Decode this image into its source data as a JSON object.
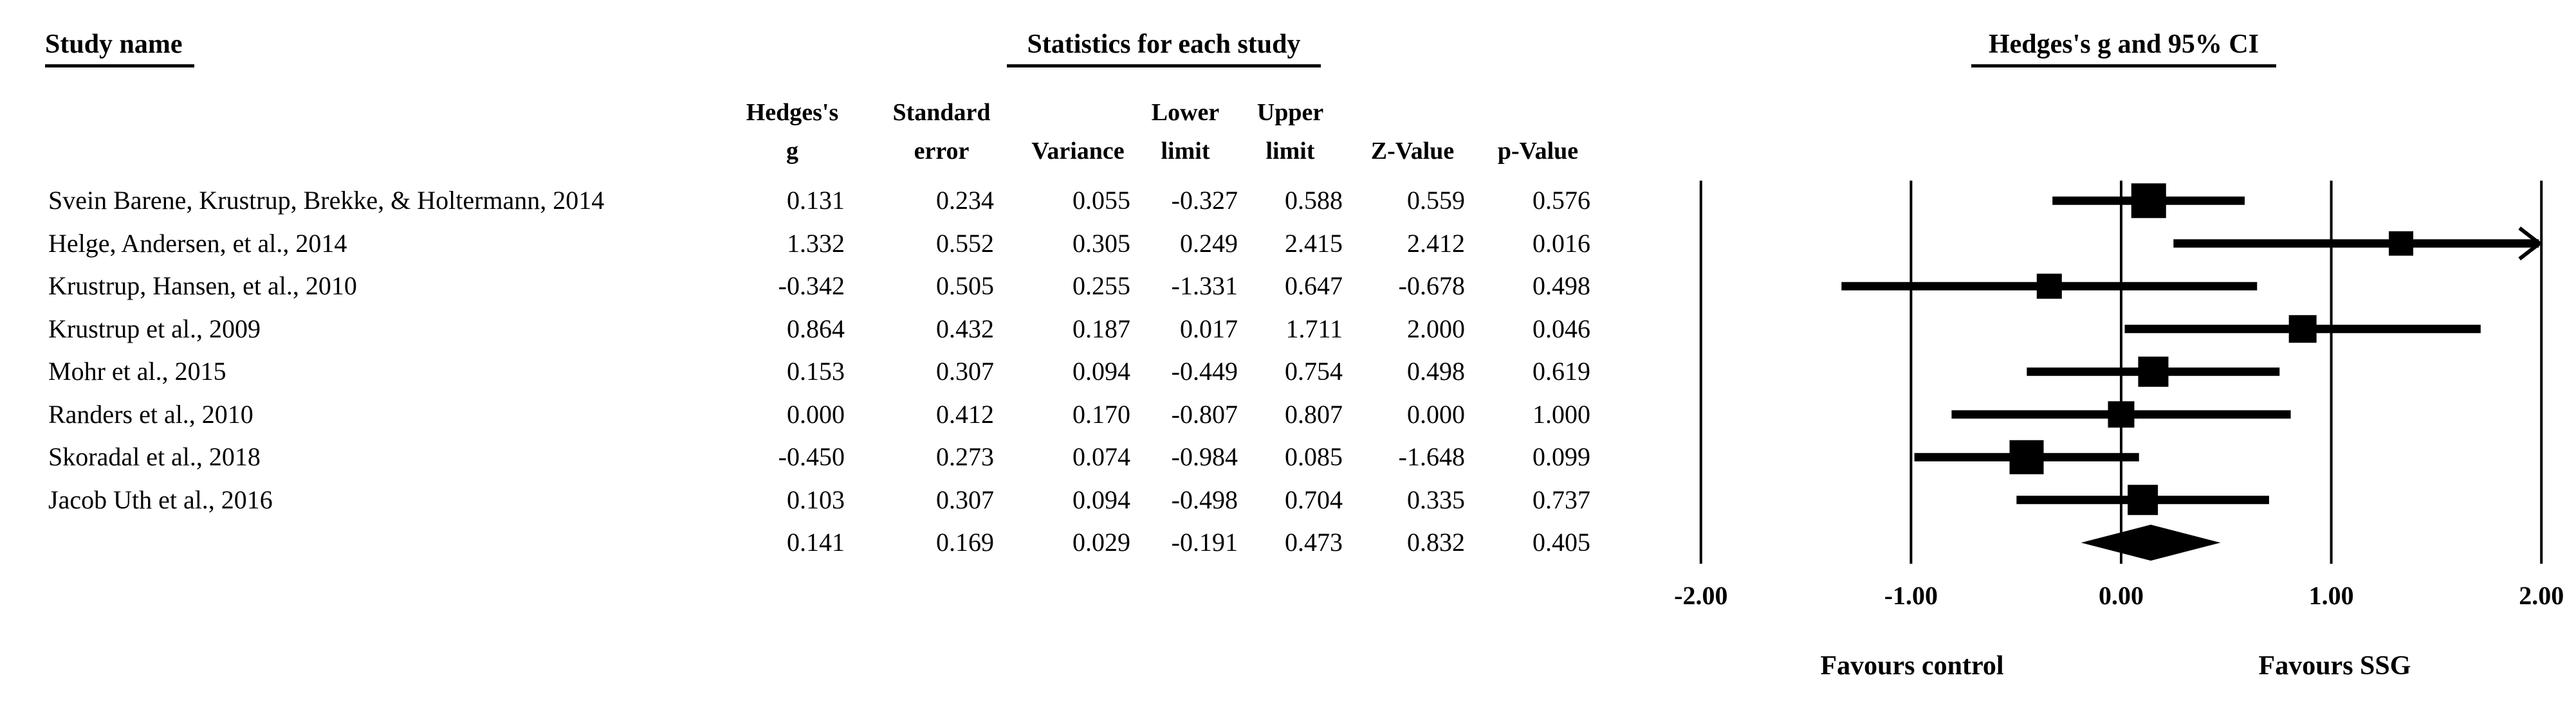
{
  "table": {
    "study_header": "Study name",
    "stats_title": "Statistics for each study",
    "column_headers": [
      {
        "line1": "Hedges's",
        "line2": "g"
      },
      {
        "line1": "Standard",
        "line2": "error"
      },
      {
        "line1": "",
        "line2": "Variance"
      },
      {
        "line1": "Lower",
        "line2": "limit"
      },
      {
        "line1": "Upper",
        "line2": "limit"
      },
      {
        "line1": "",
        "line2": "Z-Value"
      },
      {
        "line1": "",
        "line2": "p-Value"
      }
    ]
  },
  "chart_data": {
    "type": "forest",
    "title": "Hedges's g and 95% CI",
    "effect_measure": "Hedges's g",
    "xlim": [
      -2,
      2
    ],
    "axis": {
      "ticks": [
        -2,
        -1,
        0,
        1,
        2
      ],
      "tick_labels": [
        "-2.00",
        "-1.00",
        "0.00",
        "1.00",
        "2.00"
      ],
      "grid": true
    },
    "footer": {
      "left": "Favours control",
      "right": "Favours SSG"
    },
    "studies": [
      {
        "name": "Svein Barene, Krustrup, Brekke, & Holtermann, 2014",
        "g": 0.131,
        "se": 0.234,
        "variance": 0.055,
        "lower": -0.327,
        "upper": 0.588,
        "z": 0.559,
        "p": 0.576,
        "marker": 54
      },
      {
        "name": "Helge, Andersen, et al., 2014",
        "g": 1.332,
        "se": 0.552,
        "variance": 0.305,
        "lower": 0.249,
        "upper": 2.415,
        "z": 2.412,
        "p": 0.016,
        "marker": 38
      },
      {
        "name": "Krustrup, Hansen, et al., 2010",
        "g": -0.342,
        "se": 0.505,
        "variance": 0.255,
        "lower": -1.331,
        "upper": 0.647,
        "z": -0.678,
        "p": 0.498,
        "marker": 39
      },
      {
        "name": "Krustrup et al., 2009",
        "g": 0.864,
        "se": 0.432,
        "variance": 0.187,
        "lower": 0.017,
        "upper": 1.711,
        "z": 2.0,
        "p": 0.046,
        "marker": 43
      },
      {
        "name": "Mohr et al., 2015",
        "g": 0.153,
        "se": 0.307,
        "variance": 0.094,
        "lower": -0.449,
        "upper": 0.754,
        "z": 0.498,
        "p": 0.619,
        "marker": 47
      },
      {
        "name": "Randers et al., 2010",
        "g": 0.0,
        "se": 0.412,
        "variance": 0.17,
        "lower": -0.807,
        "upper": 0.807,
        "z": 0.0,
        "p": 1.0,
        "marker": 41
      },
      {
        "name": "Skoradal et al., 2018",
        "g": -0.45,
        "se": 0.273,
        "variance": 0.074,
        "lower": -0.984,
        "upper": 0.085,
        "z": -1.648,
        "p": 0.099,
        "marker": 53
      },
      {
        "name": "Jacob Uth et al., 2016",
        "g": 0.103,
        "se": 0.307,
        "variance": 0.094,
        "lower": -0.498,
        "upper": 0.704,
        "z": 0.335,
        "p": 0.737,
        "marker": 47
      }
    ],
    "summary": {
      "name": "",
      "g": 0.141,
      "se": 0.169,
      "variance": 0.029,
      "lower": -0.191,
      "upper": 0.473,
      "z": 0.832,
      "p": 0.405
    }
  }
}
